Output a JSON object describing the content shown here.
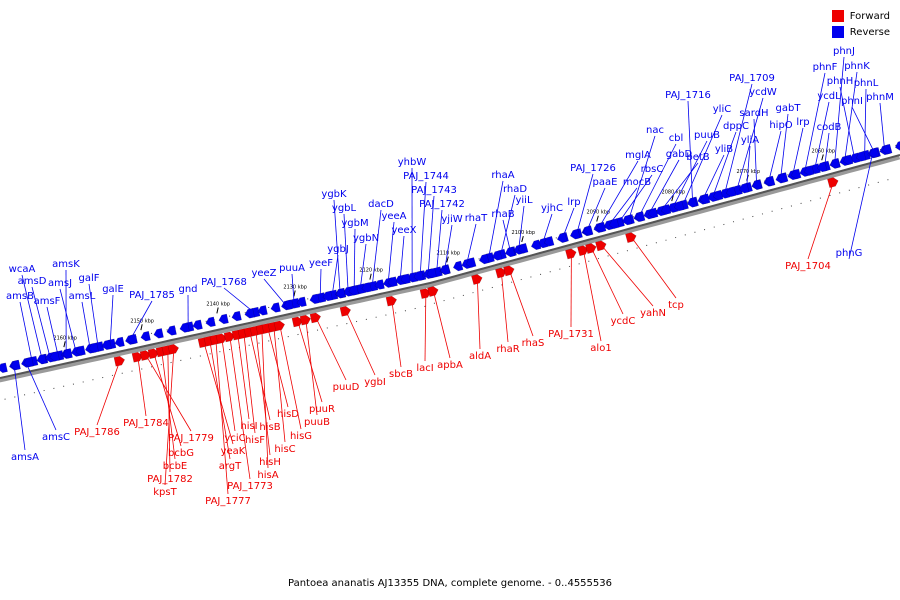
{
  "legend": {
    "forward": {
      "label": "Forward",
      "color": "#ee0000"
    },
    "reverse": {
      "label": "Reverse",
      "color": "#0000ee"
    }
  },
  "caption": "Pantoea ananatis AJ13355 DNA, complete genome. - 0..4555536",
  "ticks": [
    "2160 kbp",
    "2150 kbp",
    "2140 kbp",
    "2130 kbp",
    "2120 kbp",
    "2110 kbp",
    "2100 kbp",
    "2090 kbp",
    "2080 kbp",
    "2070 kbp",
    "2060 kbp"
  ],
  "reverse_labels": [
    "amsA",
    "amsC",
    "amsB",
    "wcaA",
    "amsD",
    "amsF",
    "amsK",
    "amsJ",
    "amsL",
    "galF",
    "galE",
    "PAJ_1785",
    "gnd",
    "PAJ_1768",
    "yeeZ",
    "puuA",
    "yeeF",
    "ygbJ",
    "ygbK",
    "ygbL",
    "ygbM",
    "ygbN",
    "dacD",
    "yeeA",
    "yeeX",
    "yhbW",
    "PAJ_1744",
    "PAJ_1743",
    "PAJ_1742",
    "yjiW",
    "rhaT",
    "rhaA",
    "rhaD",
    "rhaB",
    "yiiL",
    "yjhC",
    "lrp",
    "PAJ_1726",
    "paaE",
    "mglA",
    "mocB",
    "rbsC",
    "nac",
    "cbl",
    "gabD",
    "betB",
    "puuB",
    "yliC",
    "PAJ_1716",
    "yliB",
    "dppC",
    "PAJ_1709",
    "ycdW",
    "yliA",
    "sardH",
    "hipO",
    "gabT",
    "lrp",
    "phnF",
    "ycdL",
    "codB",
    "phnJ",
    "phnK",
    "phnH",
    "phnL",
    "phnI",
    "phnM",
    "phnG"
  ],
  "forward_labels": [
    "PAJ_1786",
    "PAJ_1784",
    "PAJ_1779",
    "bcbG",
    "bcbE",
    "PAJ_1782",
    "kpsT",
    "yeaK",
    "argT",
    "PAJ_1777",
    "yciC",
    "PAJ_1773",
    "hisI",
    "hisF",
    "hisB",
    "hisH",
    "hisA",
    "hisD",
    "hisC",
    "hisG",
    "puuR",
    "puuB",
    "puuD",
    "ygbI",
    "sbcB",
    "lacI",
    "apbA",
    "aldA",
    "rhaR",
    "rhaS",
    "PAJ_1731",
    "alo1",
    "ycdC",
    "yahN",
    "tcp",
    "PAJ_1704"
  ]
}
